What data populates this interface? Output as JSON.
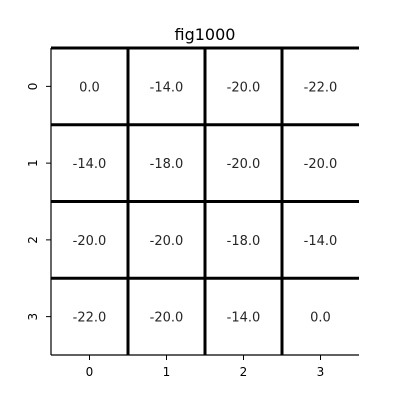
{
  "chart_data": {
    "type": "heatmap",
    "title": "fig1000",
    "xlabel": "",
    "ylabel": "",
    "x_categories": [
      "0",
      "1",
      "2",
      "3"
    ],
    "y_categories": [
      "0",
      "1",
      "2",
      "3"
    ],
    "values": [
      [
        "0.0",
        "-14.0",
        "-20.0",
        "-22.0"
      ],
      [
        "-14.0",
        "-18.0",
        "-20.0",
        "-20.0"
      ],
      [
        "-20.0",
        "-20.0",
        "-18.0",
        "-14.0"
      ],
      [
        "-22.0",
        "-20.0",
        "-14.0",
        "0.0"
      ]
    ],
    "cell_color": "#ffffff",
    "grid_line_color": "#000000",
    "colorbar": false
  }
}
